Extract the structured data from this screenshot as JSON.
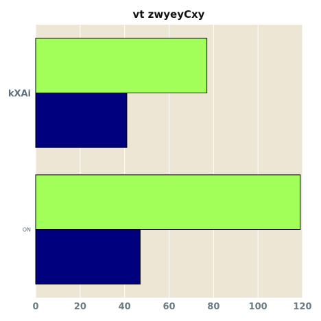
{
  "chart_data": {
    "type": "bar",
    "orientation": "horizontal",
    "title": "vt zwyeyCxy",
    "xlabel": "",
    "ylabel": "",
    "categories": [
      "kXAi",
      "ON"
    ],
    "series": [
      {
        "values": [
          41,
          47
        ],
        "color": "#00007f"
      },
      {
        "values": [
          77,
          119
        ],
        "color": "#a2ff5a"
      }
    ],
    "xlim": [
      0,
      120
    ],
    "xticks": [
      0,
      20,
      40,
      60,
      80,
      100,
      120
    ],
    "grid": true,
    "legend": "none",
    "background": "#ede6d5"
  }
}
